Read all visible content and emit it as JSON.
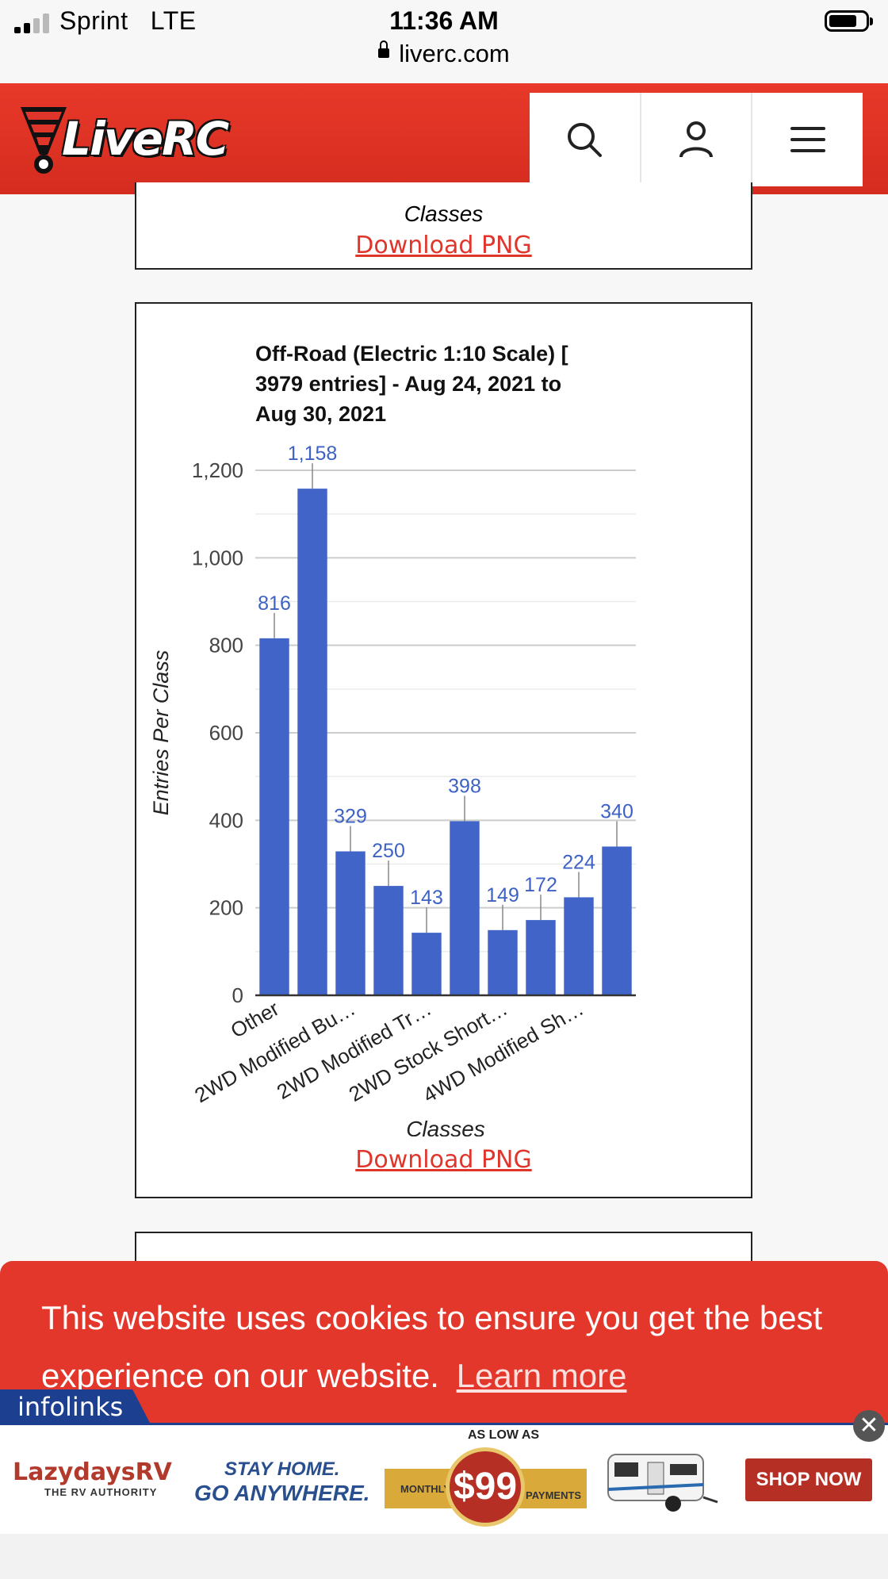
{
  "status_bar": {
    "carrier": "Sprint",
    "network": "LTE",
    "time": "11:36 AM",
    "url": "liverc.com"
  },
  "header": {
    "logo_text": "LiveRC",
    "icons": [
      "search-icon",
      "user-icon",
      "menu-icon"
    ],
    "brand_color": "#e0352b"
  },
  "previous_chart": {
    "xlabel": "Classes",
    "download_label": "Download PNG"
  },
  "chart_card": {
    "download_label": "Download PNG"
  },
  "chart_data": {
    "type": "bar",
    "title": "Off-Road (Electric 1:10 Scale) [ 3979 entries] - Aug 24, 2021 to Aug 30, 2021",
    "title_lines": [
      "Off-Road (Electric 1:10 Scale) [",
      "3979 entries] - Aug 24, 2021 to",
      "Aug 30, 2021"
    ],
    "xlabel": "Classes",
    "ylabel": "Entries Per Class",
    "ylim": [
      0,
      1200
    ],
    "yticks": [
      0,
      200,
      400,
      600,
      800,
      1000,
      1200
    ],
    "ytick_labels": [
      "0",
      "200",
      "400",
      "600",
      "800",
      "1,000",
      "1,200"
    ],
    "grid": true,
    "bar_color": "#4064c8",
    "values": [
      816,
      1158,
      329,
      250,
      143,
      398,
      149,
      172,
      224,
      340
    ],
    "value_labels": [
      "816",
      "1,158",
      "329",
      "250",
      "143",
      "398",
      "149",
      "172",
      "224",
      "340"
    ],
    "xtick_labels": [
      "Other",
      "2WD Modified Bu…",
      "2WD Modified Tr…",
      "2WD Stock Short…",
      "4WD Modified Sh…"
    ],
    "xtick_bar_index": [
      0,
      2,
      4,
      6,
      8
    ]
  },
  "cookie_banner": {
    "text": "This website uses cookies to ensure you get the best experience on our website.",
    "link_label": "Learn more"
  },
  "ad": {
    "network_label": "infolinks",
    "close_glyph": "✕",
    "brand": "LazydaysRV",
    "brand_tagline": "THE RV AUTHORITY",
    "headline_1": "STAY HOME.",
    "headline_2": "GO ANYWHERE.",
    "as_low_as": "AS LOW AS",
    "monthly": "MONTHLY",
    "price": "$99",
    "payments": "PAYMENTS",
    "cta": "SHOP NOW"
  }
}
